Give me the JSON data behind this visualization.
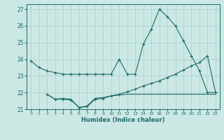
{
  "xlabel": "Humidex (Indice chaleur)",
  "bg_color": "#cce8e4",
  "grid_color": "#aad4d0",
  "line_color": "#1a6b6b",
  "xlim": [
    -0.5,
    23.5
  ],
  "ylim": [
    21,
    27.3
  ],
  "yticks": [
    21,
    22,
    23,
    24,
    25,
    26,
    27
  ],
  "xticks": [
    0,
    1,
    2,
    3,
    4,
    5,
    6,
    7,
    8,
    9,
    10,
    11,
    12,
    13,
    14,
    15,
    16,
    17,
    18,
    19,
    20,
    21,
    22,
    23
  ],
  "line1_x": [
    0,
    1,
    2,
    3,
    4,
    5,
    6,
    7,
    8,
    9,
    10,
    11,
    12,
    13,
    14,
    15,
    16,
    17,
    18,
    19,
    20,
    21,
    22,
    23
  ],
  "line1_y": [
    23.9,
    23.5,
    23.3,
    23.2,
    23.1,
    23.1,
    23.1,
    23.1,
    23.1,
    23.1,
    23.1,
    24.0,
    23.1,
    23.1,
    24.9,
    25.8,
    27.0,
    26.55,
    26.0,
    25.1,
    24.2,
    23.3,
    22.0,
    22.0
  ],
  "line2_x": [
    2,
    3,
    4,
    5,
    6,
    7,
    8,
    9,
    10,
    11,
    12,
    13,
    14,
    15,
    16,
    17,
    18,
    19,
    20,
    21,
    22,
    23
  ],
  "line2_y": [
    21.9,
    21.6,
    21.6,
    21.55,
    21.1,
    21.15,
    21.6,
    21.65,
    21.8,
    21.9,
    22.05,
    22.2,
    22.4,
    22.55,
    22.7,
    22.9,
    23.1,
    23.35,
    23.6,
    23.8,
    24.2,
    22.0
  ],
  "line3_x": [
    2,
    3,
    4,
    5,
    6,
    7,
    8,
    9,
    10,
    11,
    12,
    13,
    14,
    15,
    16,
    17,
    18,
    19,
    20,
    21,
    22,
    23
  ],
  "line3_y": [
    21.9,
    21.6,
    21.65,
    21.6,
    21.1,
    21.2,
    21.65,
    21.7,
    21.8,
    21.85,
    21.9,
    21.9,
    21.9,
    21.9,
    21.9,
    21.9,
    21.9,
    21.9,
    21.9,
    21.9,
    21.9,
    21.9
  ]
}
